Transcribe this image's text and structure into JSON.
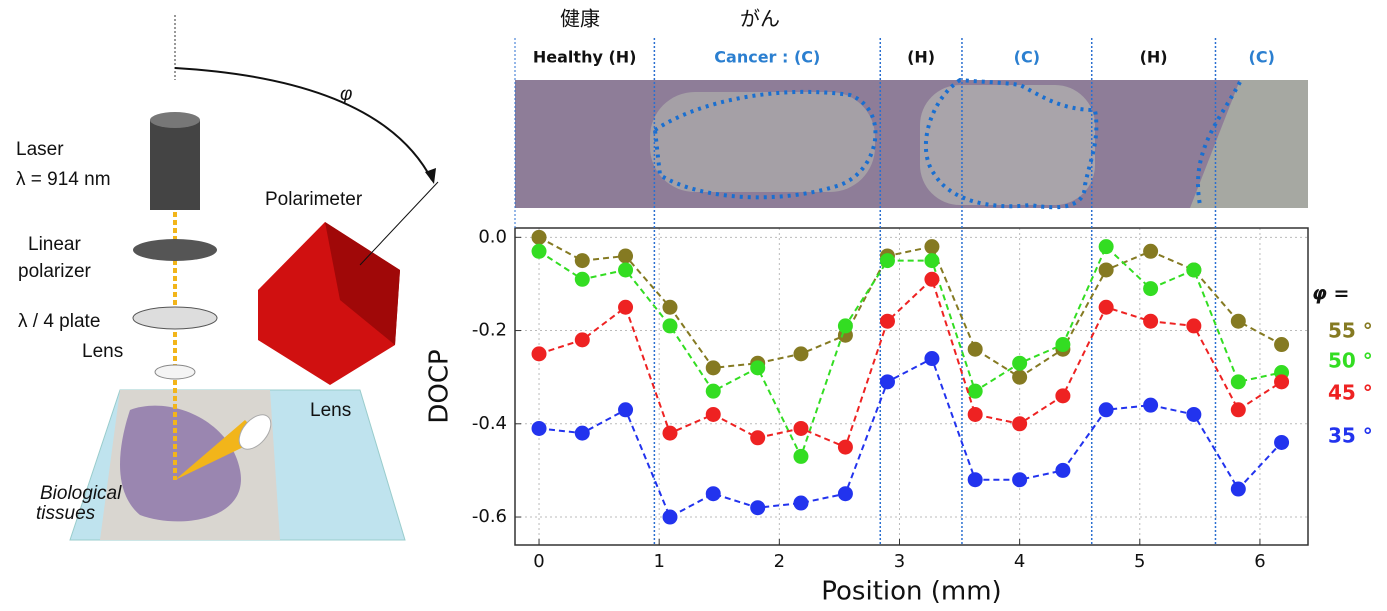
{
  "diagram": {
    "phi": "φ",
    "laser": "Laser",
    "wavelength": "λ = 914 nm",
    "polarimeter": "Polarimeter",
    "polarizer_1": "Linear",
    "polarizer_2": "polarizer",
    "plate": "λ / 4 plate",
    "lens_1": "Lens",
    "lens_2": "Lens",
    "tissue_1": "Biological",
    "tissue_2": "tissues"
  },
  "chart_data": {
    "type": "line",
    "annotations": [
      "健康",
      "がん"
    ],
    "regions": [
      {
        "label": "Healthy (H)",
        "color": "#111111"
      },
      {
        "label": "Cancer : (C)",
        "color": "#2b7fd0"
      },
      {
        "label": "(H)",
        "color": "#111111"
      },
      {
        "label": "(C)",
        "color": "#2b7fd0"
      },
      {
        "label": "(H)",
        "color": "#111111"
      },
      {
        "label": "(C)",
        "color": "#2b7fd0"
      }
    ],
    "boundaries": [
      0.96,
      2.84,
      3.52,
      4.6,
      5.63
    ],
    "xlabel": "Position (mm)",
    "ylabel": "DOCP",
    "legend_title": "φ =",
    "x": [
      0,
      0.36,
      0.72,
      1.09,
      1.45,
      1.82,
      2.18,
      2.55,
      2.9,
      3.27,
      3.63,
      4.0,
      4.36,
      4.72,
      5.09,
      5.45,
      5.82,
      6.18
    ],
    "series": [
      {
        "name": "55 °",
        "color": "#857a22",
        "values": [
          0,
          -0.05,
          -0.04,
          -0.15,
          -0.28,
          -0.27,
          -0.25,
          -0.21,
          -0.04,
          -0.02,
          -0.24,
          -0.3,
          -0.24,
          -0.07,
          -0.03,
          -0.07,
          -0.18,
          -0.23
        ]
      },
      {
        "name": "50 °",
        "color": "#33dd22",
        "values": [
          -0.03,
          -0.09,
          -0.07,
          -0.19,
          -0.33,
          -0.28,
          -0.47,
          -0.19,
          -0.05,
          -0.05,
          -0.33,
          -0.27,
          -0.23,
          -0.02,
          -0.11,
          -0.07,
          -0.31,
          -0.29
        ]
      },
      {
        "name": "45 °",
        "color": "#ee2222",
        "values": [
          -0.25,
          -0.22,
          -0.15,
          -0.42,
          -0.38,
          -0.43,
          -0.41,
          -0.45,
          -0.18,
          -0.09,
          -0.38,
          -0.4,
          -0.34,
          -0.15,
          -0.18,
          -0.19,
          -0.37,
          -0.31
        ]
      },
      {
        "name": "35 °",
        "color": "#2233ee",
        "values": [
          -0.41,
          -0.42,
          -0.37,
          -0.6,
          -0.55,
          -0.58,
          -0.57,
          -0.55,
          -0.31,
          -0.26,
          -0.52,
          -0.52,
          -0.5,
          -0.37,
          -0.36,
          -0.38,
          -0.54,
          -0.44
        ]
      }
    ],
    "xlim": [
      -0.2,
      6.4
    ],
    "ylim": [
      -0.66,
      0.02
    ],
    "xticks": [
      0,
      1,
      2,
      3,
      4,
      5,
      6
    ],
    "yticks": [
      {
        "value": 0,
        "label": "0.0"
      },
      {
        "value": -0.2,
        "label": "-0.2"
      },
      {
        "value": -0.4,
        "label": "-0.4"
      },
      {
        "value": -0.6,
        "label": "-0.6"
      }
    ],
    "grid": true
  }
}
